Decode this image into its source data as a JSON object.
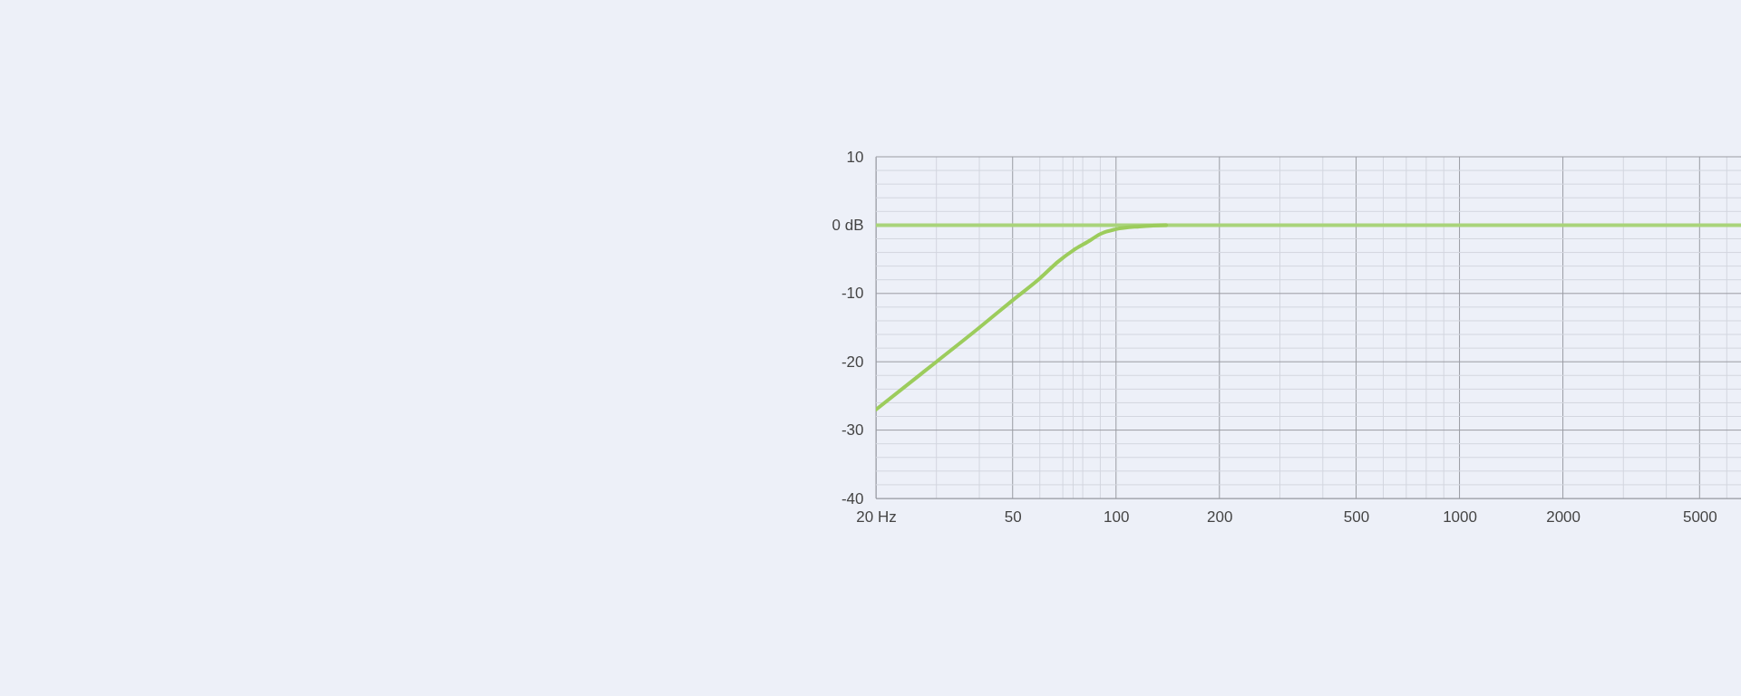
{
  "chart_data": {
    "type": "line",
    "log": "x",
    "grid": true,
    "xlim": [
      20,
      6600
    ],
    "ylim": [
      -40,
      10
    ],
    "xticks": [
      {
        "value": 20,
        "label": "20 Hz"
      },
      {
        "value": 30,
        "label": null
      },
      {
        "value": 40,
        "label": null
      },
      50,
      {
        "value": 60,
        "label": null
      },
      {
        "value": 70,
        "label": null
      },
      {
        "value": 75,
        "label": null
      },
      {
        "value": 80,
        "label": null
      },
      {
        "value": 90,
        "label": null
      },
      100,
      200,
      {
        "value": 300,
        "label": null
      },
      {
        "value": 400,
        "label": null
      },
      500,
      {
        "value": 600,
        "label": null
      },
      {
        "value": 700,
        "label": null
      },
      {
        "value": 800,
        "label": null
      },
      {
        "value": 900,
        "label": null
      },
      1000,
      2000,
      {
        "value": 3000,
        "label": null
      },
      {
        "value": 4000,
        "label": null
      },
      5000,
      {
        "value": 6000,
        "label": null
      }
    ],
    "yticks": [
      10,
      {
        "value": 8,
        "label": null
      },
      {
        "value": 6,
        "label": null
      },
      {
        "value": 4,
        "label": null
      },
      {
        "value": 2,
        "label": null
      },
      {
        "value": 0,
        "label": "0 dB"
      },
      {
        "value": -2,
        "label": null
      },
      {
        "value": -4,
        "label": null
      },
      {
        "value": -6,
        "label": null
      },
      {
        "value": -8,
        "label": null
      },
      -10,
      {
        "value": -12,
        "label": null
      },
      {
        "value": -14,
        "label": null
      },
      {
        "value": -16,
        "label": null
      },
      {
        "value": -18,
        "label": null
      },
      -20,
      {
        "value": -22,
        "label": null
      },
      {
        "value": -24,
        "label": null
      },
      {
        "value": -26,
        "label": null
      },
      {
        "value": -28,
        "label": null
      },
      -30,
      {
        "value": -32,
        "label": null
      },
      {
        "value": -34,
        "label": null
      },
      {
        "value": -36,
        "label": null
      },
      {
        "value": -38,
        "label": null
      },
      -40
    ],
    "series": [
      {
        "color": "#a9d47a",
        "x": [
          20,
          6600
        ],
        "values": [
          0,
          0
        ]
      },
      {
        "color": "#9ccc5c",
        "x": [
          20,
          30,
          40,
          50,
          60,
          68,
          75,
          83,
          90,
          100,
          117,
          140
        ],
        "values": [
          -27,
          -20,
          -15,
          -11,
          -7.8,
          -5.3,
          -3.7,
          -2.4,
          -1.3,
          -0.6,
          -0.2,
          0
        ]
      }
    ]
  }
}
